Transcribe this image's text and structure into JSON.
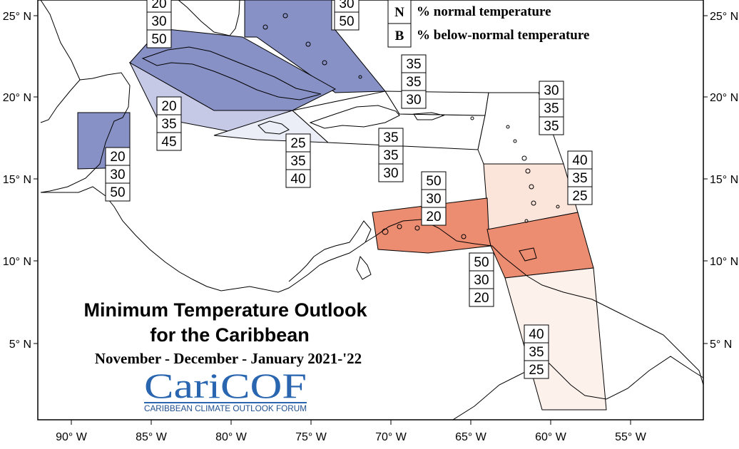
{
  "title": {
    "line1": "Minimum Temperature Outlook",
    "line2": "for the Caribbean",
    "period": "November - December - January  2021-'22"
  },
  "logo": {
    "name": "CariCOF",
    "tagline": "CARIBBEAN CLIMATE OUTLOOK FORUM"
  },
  "legend": [
    {
      "letter": "N",
      "text": "% normal temperature"
    },
    {
      "letter": "B",
      "text": "% below-normal temperature"
    }
  ],
  "lat_ticks": [
    "25° N",
    "20° N",
    "15° N",
    "10° N",
    "5° N"
  ],
  "lon_ticks": [
    "90° W",
    "85° W",
    "80° W",
    "75° W",
    "70° W",
    "65° W",
    "60° W",
    "55° W"
  ],
  "colors": {
    "below_strong": "#8891c6",
    "below_light": "#c5c9e6",
    "below_faint": "#eceef7",
    "above_strong": "#ec8c70",
    "above_light": "#fbe4da",
    "above_faint": "#fdf1ec",
    "normal": "#ffffff",
    "logo_blue": "#2a66b0"
  },
  "zones": [
    {
      "id": "bahamas",
      "fill": "below_strong"
    },
    {
      "id": "cuba",
      "fill": "below_strong"
    },
    {
      "id": "belize",
      "fill": "below_strong"
    },
    {
      "id": "cayman",
      "fill": "below_light"
    },
    {
      "id": "jamaica",
      "fill": "below_faint"
    },
    {
      "id": "hispaniola",
      "fill": "normal"
    },
    {
      "id": "puerto-rico",
      "fill": "normal"
    },
    {
      "id": "leeward",
      "fill": "normal"
    },
    {
      "id": "windward",
      "fill": "above_light"
    },
    {
      "id": "abc-islands",
      "fill": "above_strong"
    },
    {
      "id": "trinidad",
      "fill": "above_strong"
    },
    {
      "id": "guianas",
      "fill": "above_faint"
    }
  ],
  "probability_boxes": [
    {
      "id": "belize",
      "values": [
        "20",
        "30",
        "50"
      ]
    },
    {
      "id": "bahamas-w",
      "values": [
        "20",
        "30",
        "50"
      ]
    },
    {
      "id": "bahamas-e",
      "values": [
        "30",
        "50"
      ]
    },
    {
      "id": "cayman",
      "values": [
        "20",
        "35",
        "45"
      ]
    },
    {
      "id": "jamaica",
      "values": [
        "25",
        "35",
        "40"
      ]
    },
    {
      "id": "hispaniola",
      "values": [
        "35",
        "35",
        "30"
      ]
    },
    {
      "id": "puerto-rico",
      "values": [
        "35",
        "35",
        "30"
      ]
    },
    {
      "id": "leeward",
      "values": [
        "30",
        "35",
        "35"
      ]
    },
    {
      "id": "windward",
      "values": [
        "40",
        "35",
        "25"
      ]
    },
    {
      "id": "abc-islands",
      "values": [
        "50",
        "30",
        "20"
      ]
    },
    {
      "id": "trinidad",
      "values": [
        "50",
        "30",
        "20"
      ]
    },
    {
      "id": "guianas",
      "values": [
        "40",
        "35",
        "25"
      ]
    }
  ]
}
